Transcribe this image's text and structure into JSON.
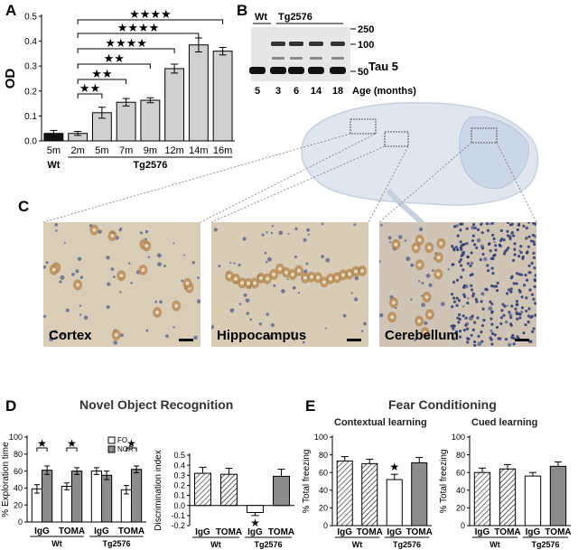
{
  "panels": {
    "A": "A",
    "B": "B",
    "C": "C",
    "D": "D",
    "E": "E"
  },
  "chart_data": [
    {
      "id": "A",
      "type": "bar",
      "ylabel": "OD",
      "ylim": [
        0,
        0.5
      ],
      "yticks": [
        "0.0",
        "0.1",
        "0.2",
        "0.3",
        "0.4",
        "0.5"
      ],
      "categories": [
        "5m",
        "2m",
        "5m",
        "7m",
        "9m",
        "12m",
        "14m",
        "16m"
      ],
      "groups": [
        {
          "label": "Wt",
          "from": 0,
          "to": 0
        },
        {
          "label": "Tg2576",
          "from": 1,
          "to": 7
        }
      ],
      "values": [
        0.03,
        0.03,
        0.113,
        0.155,
        0.163,
        0.29,
        0.385,
        0.36
      ],
      "errors": [
        0.012,
        0.008,
        0.022,
        0.015,
        0.01,
        0.018,
        0.028,
        0.015
      ],
      "bar_colors": [
        "#111111",
        "#d0d0d0",
        "#d0d0d0",
        "#d0d0d0",
        "#d0d0d0",
        "#d0d0d0",
        "#d0d0d0",
        "#d0d0d0"
      ],
      "significance": [
        {
          "from": 1,
          "to": 2,
          "label": "★★"
        },
        {
          "from": 1,
          "to": 3,
          "label": "★★"
        },
        {
          "from": 1,
          "to": 4,
          "label": "★★"
        },
        {
          "from": 1,
          "to": 5,
          "label": "★★★★"
        },
        {
          "from": 1,
          "to": 6,
          "label": "★★★★"
        },
        {
          "from": 1,
          "to": 7,
          "label": "★★★★"
        }
      ]
    },
    {
      "id": "D-left",
      "type": "bar",
      "ylabel": "% Exploration time",
      "ylim": [
        0,
        100
      ],
      "yticks": [
        "0",
        "20",
        "40",
        "60",
        "80",
        "100"
      ],
      "categories": [
        "IgG",
        "TOMA",
        "IgG",
        "TOMA"
      ],
      "groups": [
        {
          "label": "Wt",
          "from": 0,
          "to": 1
        },
        {
          "label": "Tg2576",
          "from": 2,
          "to": 3
        }
      ],
      "series": [
        {
          "name": "FO",
          "values": [
            39,
            42,
            60,
            38
          ],
          "errors": [
            5,
            4,
            4,
            5
          ]
        },
        {
          "name": "NOR",
          "values": [
            61,
            60,
            55,
            62
          ],
          "errors": [
            5,
            4,
            5,
            4
          ]
        }
      ],
      "significance": [
        {
          "cat": 0,
          "label": "★"
        },
        {
          "cat": 1,
          "label": "★"
        },
        {
          "cat": 3,
          "label": "★"
        }
      ],
      "legend": "top-right"
    },
    {
      "id": "D-right",
      "type": "bar",
      "ylabel": "Discrimination index",
      "ylim": [
        -0.2,
        0.5
      ],
      "yticks": [
        "-0.2",
        "-0.1",
        "0.0",
        "0.1",
        "0.2",
        "0.3",
        "0.4",
        "0.5"
      ],
      "categories": [
        "IgG",
        "TOMA",
        "IgG",
        "TOMA"
      ],
      "groups": [
        {
          "label": "Wt",
          "from": 0,
          "to": 1
        },
        {
          "label": "Tg2576",
          "from": 2,
          "to": 3
        }
      ],
      "values": [
        0.32,
        0.31,
        -0.07,
        0.29
      ],
      "errors": [
        0.06,
        0.06,
        0.03,
        0.07
      ],
      "significance": [
        {
          "cat": 2,
          "label": "★"
        }
      ]
    },
    {
      "id": "E-left",
      "type": "bar",
      "subtitle": "Contextual learning",
      "ylabel": "% Total freezing",
      "ylim": [
        0,
        100
      ],
      "yticks": [
        "0",
        "20",
        "40",
        "60",
        "80",
        "100"
      ],
      "categories": [
        "IgG",
        "TOMA",
        "IgG",
        "TOMA"
      ],
      "groups": [
        {
          "label": "Wt",
          "from": 0,
          "to": 1
        },
        {
          "label": "Tg2576",
          "from": 2,
          "to": 3
        }
      ],
      "values": [
        73,
        70,
        52,
        71
      ],
      "errors": [
        5,
        5,
        6,
        6
      ],
      "significance": [
        {
          "cat": 2,
          "label": "★"
        }
      ]
    },
    {
      "id": "E-right",
      "type": "bar",
      "subtitle": "Cued learning",
      "ylabel": "% Total freezing",
      "ylim": [
        0,
        100
      ],
      "yticks": [
        "0",
        "20",
        "40",
        "60",
        "80",
        "100"
      ],
      "categories": [
        "IgG",
        "TOMA",
        "IgG",
        "TOMA"
      ],
      "groups": [
        {
          "label": "Wt",
          "from": 0,
          "to": 1
        },
        {
          "label": "Tg2576",
          "from": 2,
          "to": 3
        }
      ],
      "values": [
        60,
        64,
        56,
        67
      ],
      "errors": [
        5,
        5,
        4,
        5
      ],
      "significance": []
    }
  ],
  "western": {
    "group_labels": [
      "Wt",
      "Tg2576"
    ],
    "markers": [
      "250",
      "100",
      "50"
    ],
    "protein": "Tau 5",
    "ages": [
      "5",
      "3",
      "6",
      "14",
      "18"
    ],
    "age_label": "Age (months)"
  },
  "micrographs": [
    {
      "label": "Cortex",
      "background": "#d9cdb8"
    },
    {
      "label": "Hippocampus",
      "background": "#d8ccb6"
    },
    {
      "label": "Cerebellum",
      "background": "#cfc4b6"
    }
  ],
  "titles": {
    "D": "Novel Object Recognition",
    "E": "Fear Conditioning"
  },
  "colors": {
    "wt_bar": "#111111",
    "tg_bar": "#d0d0d0",
    "toma_bar": "#8c8c8c",
    "brain": "#dde4ee"
  }
}
